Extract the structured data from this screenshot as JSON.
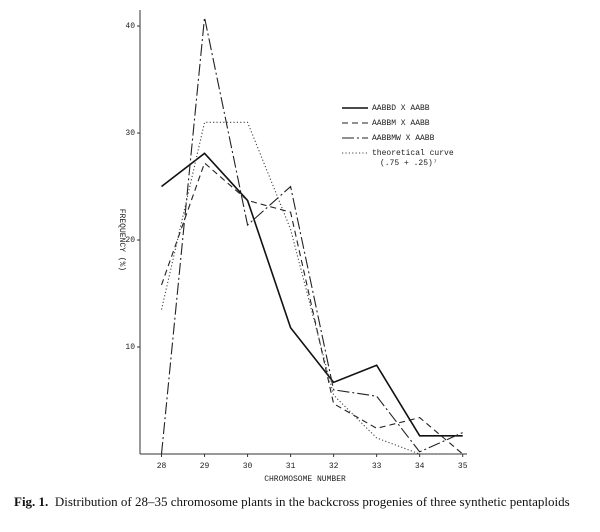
{
  "chart_data": {
    "type": "line",
    "x_label": "CHROMOSOME NUMBER",
    "y_label": "FREQUENCY (%)",
    "x": [
      28,
      29,
      30,
      31,
      32,
      33,
      34,
      35
    ],
    "xlim": [
      27.5,
      35.1
    ],
    "xticks": [
      28,
      29,
      30,
      31,
      32,
      33,
      34,
      35
    ],
    "ylim": [
      0,
      41.5
    ],
    "yticks": [
      10,
      20,
      30,
      40
    ],
    "series": [
      {
        "name": "AABBD X AABB",
        "color": "#111",
        "style": "solid",
        "values": [
          25,
          28.1,
          23.7,
          11.8,
          6.7,
          8.3,
          1.7,
          1.7
        ]
      },
      {
        "name": "AABBM X AABB",
        "color": "#222",
        "style": "dashed",
        "values": [
          15.8,
          27.2,
          23.7,
          22.6,
          4.7,
          2.4,
          3.4,
          0
        ]
      },
      {
        "name": "AABBMW X AABB",
        "color": "#222",
        "style": "dashdot",
        "values": [
          0,
          40.8,
          21.4,
          25,
          6,
          5.4,
          0.2,
          2
        ]
      },
      {
        "name": "theoretical curve",
        "note": "(.75 + .25)⁷",
        "color": "#444",
        "style": "dotted",
        "values": [
          13.5,
          31,
          31,
          21,
          5.5,
          1.5,
          0,
          0
        ]
      }
    ],
    "caption_label": "Fig. 1.",
    "caption": "Distribution of 28–35 chromosome plants in the backcross progenies of three synthetic pentaploids"
  }
}
